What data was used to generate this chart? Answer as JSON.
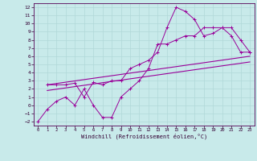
{
  "xlabel": "Windchill (Refroidissement éolien,°C)",
  "bg_color": "#c8eaea",
  "grid_color": "#b0d8d8",
  "line_color": "#990099",
  "xlim": [
    -0.5,
    23.5
  ],
  "ylim": [
    -2.5,
    12.5
  ],
  "xticks": [
    0,
    1,
    2,
    3,
    4,
    5,
    6,
    7,
    8,
    9,
    10,
    11,
    12,
    13,
    14,
    15,
    16,
    17,
    18,
    19,
    20,
    21,
    22,
    23
  ],
  "yticks": [
    -2,
    -1,
    0,
    1,
    2,
    3,
    4,
    5,
    6,
    7,
    8,
    9,
    10,
    11,
    12
  ],
  "series1_x": [
    0,
    1,
    2,
    3,
    4,
    5,
    6,
    7,
    8,
    9,
    10,
    11,
    12,
    13,
    14,
    15,
    16,
    17,
    18,
    19,
    20,
    21,
    22,
    23
  ],
  "series1_y": [
    -2,
    -0.5,
    0.5,
    1,
    0,
    2,
    0,
    -1.5,
    -1.5,
    1,
    2,
    3,
    4.5,
    7.5,
    7.5,
    8,
    8.5,
    8.5,
    9.5,
    9.5,
    9.5,
    8.5,
    6.5,
    6.5
  ],
  "series2_x": [
    1,
    2,
    3,
    4,
    5,
    6,
    7,
    8,
    9,
    10,
    11,
    12,
    13,
    14,
    15,
    16,
    17,
    18,
    19,
    20,
    21,
    22,
    23
  ],
  "series2_y": [
    2.5,
    2.5,
    2.5,
    2.7,
    1.0,
    2.8,
    2.5,
    3,
    3,
    4.5,
    5,
    5.5,
    6.5,
    9.5,
    12,
    11.5,
    10.5,
    8.5,
    8.8,
    9.5,
    9.5,
    8.0,
    6.5
  ],
  "series3_x": [
    1,
    23
  ],
  "series3_y": [
    2.5,
    6.0
  ],
  "series4_x": [
    1,
    23
  ],
  "series4_y": [
    1.8,
    5.3
  ]
}
